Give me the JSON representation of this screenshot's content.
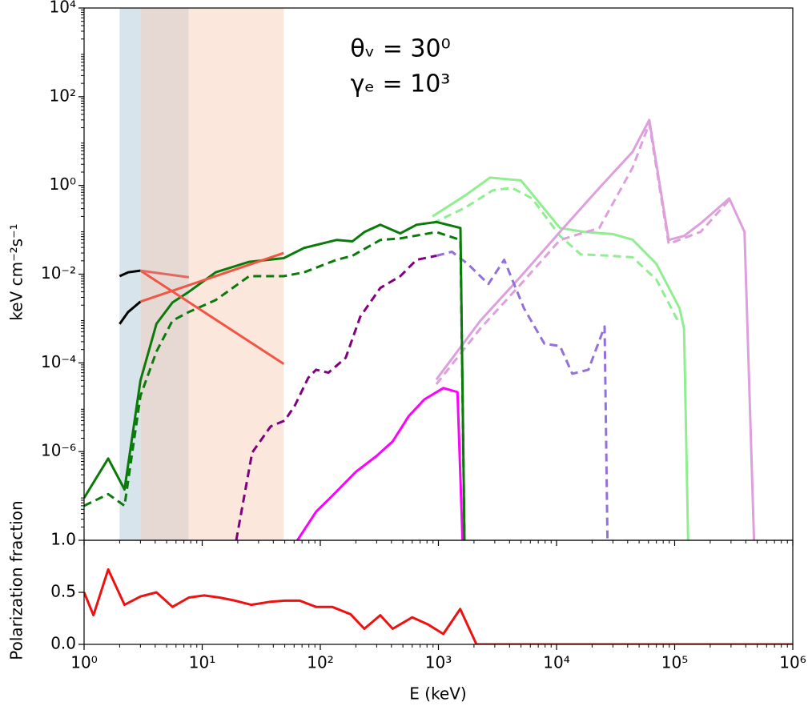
{
  "chart_data": [
    {
      "type": "line",
      "ylabel": "keV cm⁻²s⁻¹",
      "annotations": [
        "θᵥ = 30⁰",
        "γₑ = 10³"
      ],
      "xlog": true,
      "ylog": true,
      "xlim": [
        1,
        1000000
      ],
      "ylim": [
        1e-08,
        10000
      ],
      "xticks": [
        1,
        10,
        100,
        1000,
        10000,
        100000,
        1000000
      ],
      "yticks": [
        {
          "value": 1e-06,
          "label": "10⁻⁶"
        },
        {
          "value": 0.0001,
          "label": "10⁻⁴"
        },
        {
          "value": 0.01,
          "label": "10⁻²"
        },
        {
          "value": 1,
          "label": "10⁰"
        },
        {
          "value": 100,
          "label": "10²"
        },
        {
          "value": 10000,
          "label": "10⁴"
        }
      ],
      "bands": [
        {
          "x": [
            2,
            3
          ],
          "color": "#d7e4eb"
        },
        {
          "x": [
            3,
            7.7
          ],
          "color": "#e6d9d4"
        },
        {
          "x": [
            7.7,
            49
          ],
          "color": "#fbe7dc"
        }
      ],
      "series": [
        {
          "color": "#90ee90",
          "dash": false,
          "x": [
            890,
            1660,
            2735,
            5000,
            10700,
            17000,
            30000,
            44000,
            70000,
            110000,
            120000,
            130000
          ],
          "values": [
            0.2,
            0.58,
            1.5,
            1.3,
            0.11,
            0.09,
            0.08,
            0.06,
            0.017,
            0.0017,
            0.0006,
            1e-08
          ]
        },
        {
          "color": "#90ee90",
          "dash": true,
          "x": [
            890,
            1660,
            2900,
            4200,
            6200,
            10700,
            16000,
            28000,
            44000,
            70000,
            110000
          ],
          "values": [
            0.14,
            0.31,
            0.78,
            0.88,
            0.51,
            0.073,
            0.028,
            0.026,
            0.024,
            0.0075,
            0.00075
          ]
        },
        {
          "color": "#dda0dd",
          "dash": false,
          "x": [
            960,
            2270,
            5000,
            10700,
            23000,
            44000,
            61000,
            89000,
            120000,
            166000,
            290000,
            390000,
            470000
          ],
          "values": [
            4.2e-05,
            0.0009,
            0.009,
            0.09,
            0.88,
            5.7,
            30,
            0.059,
            0.073,
            0.14,
            0.51,
            0.09,
            1e-08
          ]
        },
        {
          "color": "#dda0dd",
          "dash": true,
          "x": [
            960,
            2270,
            5000,
            10700,
            23000,
            44000,
            61000,
            89000,
            166000,
            290000
          ],
          "values": [
            3.3e-05,
            0.0006,
            0.006,
            0.059,
            0.11,
            2.5,
            25,
            0.048,
            0.09,
            0.47
          ]
        },
        {
          "color": "#9370db",
          "dash": true,
          "x": [
            962,
            1300,
            1770,
            2650,
            3600,
            5300,
            7900,
            10700,
            13600,
            18600,
            25500,
            27000
          ],
          "values": [
            0.026,
            0.032,
            0.017,
            0.006,
            0.021,
            0.0017,
            0.00027,
            0.00024,
            5.7e-05,
            7e-05,
            0.00066,
            1e-08
          ]
        },
        {
          "color": "#800080",
          "dash": true,
          "x": [
            19.4,
            26.5,
            38,
            50,
            61,
            79,
            92,
            117,
            164,
            218,
            322,
            476,
            652,
            962
          ],
          "values": [
            1e-08,
            9.5e-07,
            3.7e-06,
            5e-06,
            1.1e-05,
            4.6e-05,
            7e-05,
            6e-05,
            0.00013,
            0.0011,
            0.0049,
            0.009,
            0.021,
            0.026
          ]
        },
        {
          "color": "#ff00ff",
          "dash": false,
          "x": [
            64,
            92,
            126,
            200,
            300,
            410,
            560,
            760,
            1100,
            1450,
            1600
          ],
          "values": [
            1e-08,
            4.4e-08,
            1e-07,
            3.5e-07,
            8e-07,
            1.7e-06,
            6.3e-06,
            1.5e-05,
            2.7e-05,
            2.2e-05,
            1e-08
          ]
        },
        {
          "color": "#0a7a0a",
          "dash": false,
          "x": [
            1,
            1.6,
            2.2,
            3,
            4.1,
            5.6,
            7.7,
            13,
            25,
            49,
            73,
            137,
            187,
            236,
            322,
            476,
            652,
            962,
            1535,
            1660
          ],
          "values": [
            9e-08,
            7e-07,
            1.4e-07,
            4e-05,
            0.00076,
            0.0023,
            0.004,
            0.011,
            0.019,
            0.023,
            0.039,
            0.059,
            0.055,
            0.089,
            0.13,
            0.083,
            0.13,
            0.15,
            0.11,
            1e-08
          ]
        },
        {
          "color": "#0a7a0a",
          "dash": true,
          "x": [
            1,
            1.6,
            2.2,
            3,
            4.1,
            5.6,
            7.7,
            13,
            25,
            49,
            73,
            137,
            187,
            322,
            476,
            962,
            1535,
            1660
          ],
          "values": [
            6e-08,
            1.1e-07,
            6e-08,
            1.8e-05,
            0.00018,
            0.0009,
            0.0014,
            0.0026,
            0.009,
            0.009,
            0.011,
            0.021,
            0.026,
            0.059,
            0.064,
            0.089,
            0.059,
            1e-08
          ]
        },
        {
          "color": "#000000",
          "dash": false,
          "x": [
            2,
            2.36,
            3
          ],
          "values": [
            0.009,
            0.011,
            0.012
          ]
        },
        {
          "color": "#000000",
          "dash": false,
          "x": [
            2,
            2.36,
            3
          ],
          "values": [
            0.00075,
            0.0014,
            0.0024
          ]
        },
        {
          "color": "#f05545",
          "dash": false,
          "x": [
            3,
            49
          ],
          "values": [
            0.012,
            9.5e-05
          ]
        },
        {
          "color": "#f05545",
          "dash": false,
          "x": [
            3,
            49
          ],
          "values": [
            0.0024,
            0.03
          ]
        },
        {
          "color": "#e06a60",
          "dash": false,
          "x": [
            3,
            7.7
          ],
          "values": [
            0.012,
            0.0085
          ]
        }
      ]
    },
    {
      "type": "line",
      "xlabel": "E (keV)",
      "ylabel": "Polarization fraction",
      "xlog": true,
      "ylog": false,
      "xlim": [
        1,
        1000000
      ],
      "ylim": [
        0,
        1
      ],
      "xticks": [
        {
          "value": 1,
          "label": "10⁰"
        },
        {
          "value": 10,
          "label": "10¹"
        },
        {
          "value": 100,
          "label": "10²"
        },
        {
          "value": 1000,
          "label": "10³"
        },
        {
          "value": 10000,
          "label": "10⁴"
        },
        {
          "value": 100000,
          "label": "10⁵"
        },
        {
          "value": 1000000,
          "label": "10⁶"
        }
      ],
      "yticks": [
        {
          "value": 0,
          "label": "0.0"
        },
        0.5,
        {
          "value": 1,
          "label": "1.0"
        }
      ],
      "series": [
        {
          "color": "#ee1111",
          "dash": false,
          "x": [
            1,
            1.2,
            1.6,
            2.2,
            3,
            4.1,
            5.6,
            7.7,
            10.4,
            14,
            19,
            26,
            38,
            50,
            67,
            92,
            126,
            180,
            236,
            322,
            410,
            600,
            820,
            1100,
            1530,
            2100,
            1000000
          ],
          "values": [
            0.5,
            0.28,
            0.72,
            0.38,
            0.46,
            0.5,
            0.36,
            0.45,
            0.47,
            0.45,
            0.42,
            0.38,
            0.41,
            0.42,
            0.42,
            0.36,
            0.36,
            0.29,
            0.15,
            0.28,
            0.15,
            0.26,
            0.19,
            0.1,
            0.34,
            0,
            0
          ]
        }
      ]
    }
  ]
}
